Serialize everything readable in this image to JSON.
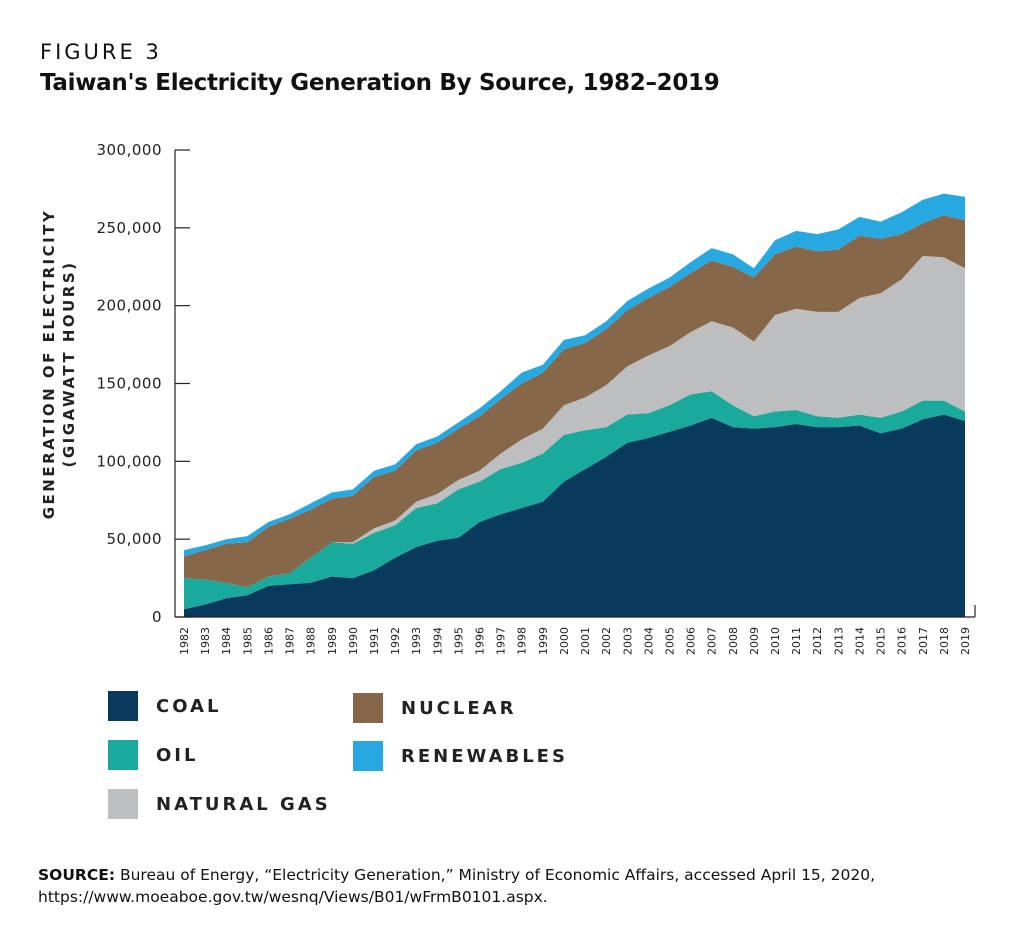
{
  "header": {
    "kicker": "FIGURE 3",
    "title": "Taiwan's Electricity Generation By Source, 1982–2019"
  },
  "source": {
    "label": "SOURCE:",
    "text": "Bureau of Energy, “Electricity Generation,” Ministry of Economic Affairs, accessed April 15, 2020,",
    "url": "https://www.moeaboe.gov.tw/wesnq/Views/B01/wFrmB0101.aspx."
  },
  "chart_data": {
    "type": "area",
    "stacked": true,
    "ylabel_line1": "GENERATION OF ELECTRICITY",
    "ylabel_line2": "(GIGAWATT HOURS)",
    "xlabel": "",
    "ylim": [
      0,
      300000
    ],
    "yticks": [
      0,
      50000,
      100000,
      150000,
      200000,
      250000,
      300000
    ],
    "ytick_labels": [
      "0",
      "50,000",
      "100,000",
      "150,000",
      "200,000",
      "250,000",
      "300,000"
    ],
    "legend_position": "bottom",
    "categories": [
      "1982",
      "1983",
      "1984",
      "1985",
      "1986",
      "1987",
      "1988",
      "1989",
      "1990",
      "1991",
      "1992",
      "1993",
      "1994",
      "1995",
      "1996",
      "1997",
      "1998",
      "1999",
      "2000",
      "2001",
      "2002",
      "2003",
      "2004",
      "2005",
      "2006",
      "2007",
      "2008",
      "2009",
      "2010",
      "2011",
      "2012",
      "2013",
      "2014",
      "2015",
      "2016",
      "2017",
      "2018",
      "2019"
    ],
    "series": [
      {
        "name": "COAL",
        "color": "#083a5e",
        "values": [
          5000,
          8000,
          12000,
          14000,
          20000,
          21000,
          22000,
          26000,
          25000,
          30000,
          38000,
          45000,
          49000,
          51000,
          61000,
          66000,
          70000,
          74000,
          87000,
          95000,
          103000,
          112000,
          115000,
          119000,
          123000,
          128000,
          122000,
          121000,
          122000,
          124000,
          122000,
          122000,
          123000,
          118000,
          121000,
          127000,
          130000,
          126000
        ]
      },
      {
        "name": "OIL",
        "color": "#1aaa9c",
        "values": [
          20000,
          16000,
          10000,
          5000,
          6000,
          7000,
          16000,
          22000,
          22000,
          24000,
          21000,
          25000,
          24000,
          31000,
          26000,
          29000,
          29000,
          31000,
          30000,
          25000,
          19000,
          18000,
          16000,
          17000,
          20000,
          17000,
          14000,
          8000,
          10000,
          9000,
          7000,
          6000,
          7000,
          10000,
          11000,
          12000,
          9000,
          6000
        ]
      },
      {
        "name": "NATURAL GAS",
        "color": "#bcbec0",
        "values": [
          0,
          0,
          0,
          0,
          0,
          0,
          0,
          0,
          1000,
          3000,
          3000,
          4000,
          6000,
          6000,
          7000,
          10000,
          15000,
          16000,
          19000,
          21000,
          27000,
          31000,
          37000,
          38000,
          40000,
          45000,
          50000,
          48000,
          62000,
          65000,
          67000,
          68000,
          75000,
          80000,
          85000,
          93000,
          92000,
          92000
        ]
      },
      {
        "name": "NUCLEAR",
        "color": "#876749",
        "values": [
          14000,
          19000,
          25000,
          29000,
          32000,
          35000,
          31000,
          28000,
          30000,
          33000,
          32000,
          33000,
          33000,
          33000,
          35000,
          35000,
          36000,
          36000,
          36000,
          35000,
          36000,
          36000,
          37000,
          38000,
          38000,
          39000,
          39000,
          41000,
          39000,
          40000,
          39000,
          40000,
          40000,
          35000,
          29000,
          21000,
          27000,
          31000
        ]
      },
      {
        "name": "RENEWABLES",
        "color": "#28a8e0",
        "values": [
          4000,
          3000,
          3000,
          4000,
          3000,
          3000,
          4000,
          4000,
          4000,
          4000,
          4000,
          4000,
          4000,
          4000,
          5000,
          5000,
          7000,
          5000,
          6000,
          5000,
          5000,
          6000,
          6000,
          6000,
          7000,
          8000,
          8000,
          6000,
          9000,
          10000,
          11000,
          13000,
          12000,
          11000,
          14000,
          15000,
          14000,
          15000
        ]
      }
    ]
  }
}
